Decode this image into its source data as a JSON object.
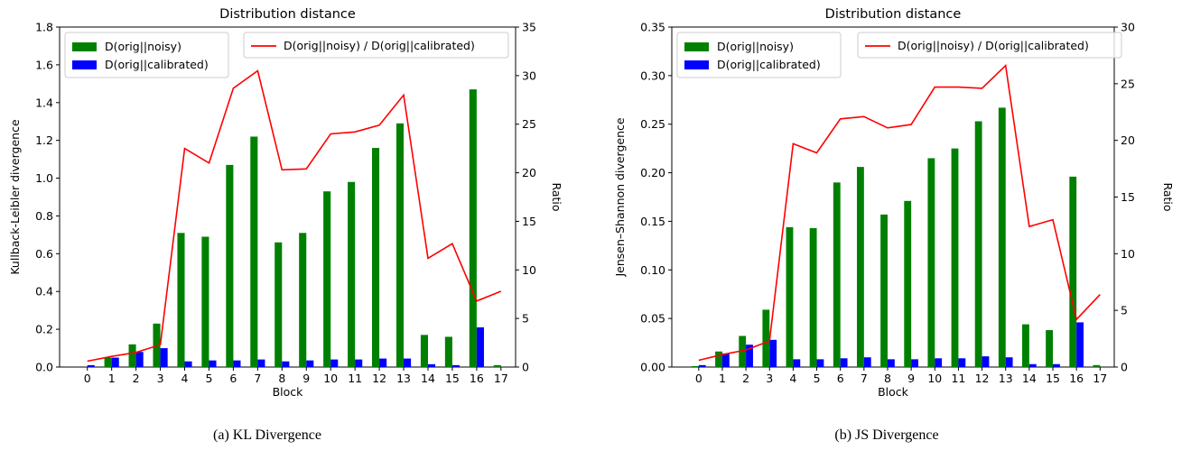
{
  "captions": [
    "(a)  KL Divergence",
    "(b)  JS Divergence"
  ],
  "chart_data": [
    {
      "type": "bar",
      "title": "Distribution distance",
      "xlabel": "Block",
      "ylabel": "Kullback-Leibler divergence",
      "y2label": "Ratio",
      "categories": [
        "0",
        "1",
        "2",
        "3",
        "4",
        "5",
        "6",
        "7",
        "8",
        "9",
        "10",
        "11",
        "12",
        "13",
        "14",
        "15",
        "16",
        "17"
      ],
      "ylim": [
        0,
        1.8
      ],
      "yticks": [
        0.0,
        0.2,
        0.4,
        0.6,
        0.8,
        1.0,
        1.2,
        1.4,
        1.6,
        1.8
      ],
      "ytick_labels": [
        "0.0",
        "0.2",
        "0.4",
        "0.6",
        "0.8",
        "1.0",
        "1.2",
        "1.4",
        "1.6",
        "1.8"
      ],
      "y2lim": [
        0,
        35
      ],
      "y2ticks": [
        0,
        5,
        10,
        15,
        20,
        25,
        30,
        35
      ],
      "y2tick_labels": [
        "0",
        "5",
        "10",
        "15",
        "20",
        "25",
        "30",
        "35"
      ],
      "series": [
        {
          "name": "D(orig||noisy)",
          "kind": "bar",
          "axis": "left",
          "color": "#008000",
          "values": [
            0.0,
            0.05,
            0.12,
            0.23,
            0.71,
            0.69,
            1.07,
            1.22,
            0.66,
            0.71,
            0.93,
            0.98,
            1.16,
            1.29,
            0.17,
            0.16,
            1.47,
            0.01
          ]
        },
        {
          "name": "D(orig||calibrated)",
          "kind": "bar",
          "axis": "left",
          "color": "#0000ff",
          "values": [
            0.01,
            0.05,
            0.08,
            0.1,
            0.03,
            0.035,
            0.035,
            0.04,
            0.03,
            0.035,
            0.04,
            0.04,
            0.045,
            0.045,
            0.015,
            0.01,
            0.21,
            null
          ]
        },
        {
          "name": "D(orig||noisy) / D(orig||calibrated)",
          "kind": "line",
          "axis": "right",
          "color": "#ff0000",
          "values": [
            0.6,
            1.1,
            1.5,
            2.3,
            22.5,
            21.0,
            28.7,
            30.5,
            20.3,
            20.4,
            24.0,
            24.2,
            24.9,
            28.0,
            11.2,
            12.7,
            6.8,
            7.8
          ]
        }
      ],
      "legend_left_placement": "top-left",
      "legend_right_placement": "top-right",
      "grid": false
    },
    {
      "type": "bar",
      "title": "Distribution distance",
      "xlabel": "Block",
      "ylabel": "Jensen–Shannon divergence",
      "y2label": "Ratio",
      "categories": [
        "0",
        "1",
        "2",
        "3",
        "4",
        "5",
        "6",
        "7",
        "8",
        "9",
        "10",
        "11",
        "12",
        "13",
        "14",
        "15",
        "16",
        "17"
      ],
      "ylim": [
        0,
        0.35
      ],
      "yticks": [
        0.0,
        0.05,
        0.1,
        0.15,
        0.2,
        0.25,
        0.3,
        0.35
      ],
      "ytick_labels": [
        "0.00",
        "0.05",
        "0.10",
        "0.15",
        "0.20",
        "0.25",
        "0.30",
        "0.35"
      ],
      "y2lim": [
        0,
        30
      ],
      "y2ticks": [
        0,
        5,
        10,
        15,
        20,
        25,
        30
      ],
      "y2tick_labels": [
        "0",
        "5",
        "10",
        "15",
        "20",
        "25",
        "30"
      ],
      "series": [
        {
          "name": "D(orig||noisy)",
          "kind": "bar",
          "axis": "left",
          "color": "#008000",
          "values": [
            0.001,
            0.016,
            0.032,
            0.059,
            0.144,
            0.143,
            0.19,
            0.206,
            0.157,
            0.171,
            0.215,
            0.225,
            0.253,
            0.267,
            0.044,
            0.038,
            0.196,
            0.002
          ]
        },
        {
          "name": "D(orig||calibrated)",
          "kind": "bar",
          "axis": "left",
          "color": "#0000ff",
          "values": [
            0.002,
            0.014,
            0.023,
            0.028,
            0.008,
            0.008,
            0.009,
            0.01,
            0.008,
            0.008,
            0.009,
            0.009,
            0.011,
            0.01,
            0.003,
            0.003,
            0.046,
            null
          ]
        },
        {
          "name": "D(orig||noisy) / D(orig||calibrated)",
          "kind": "line",
          "axis": "right",
          "color": "#ff0000",
          "values": [
            0.6,
            1.1,
            1.5,
            2.3,
            19.7,
            18.9,
            21.9,
            22.1,
            21.1,
            21.4,
            24.7,
            24.7,
            24.6,
            26.6,
            12.4,
            13.0,
            4.2,
            6.4
          ]
        }
      ],
      "legend_left_placement": "top-left",
      "legend_right_placement": "top-right",
      "grid": false
    }
  ]
}
